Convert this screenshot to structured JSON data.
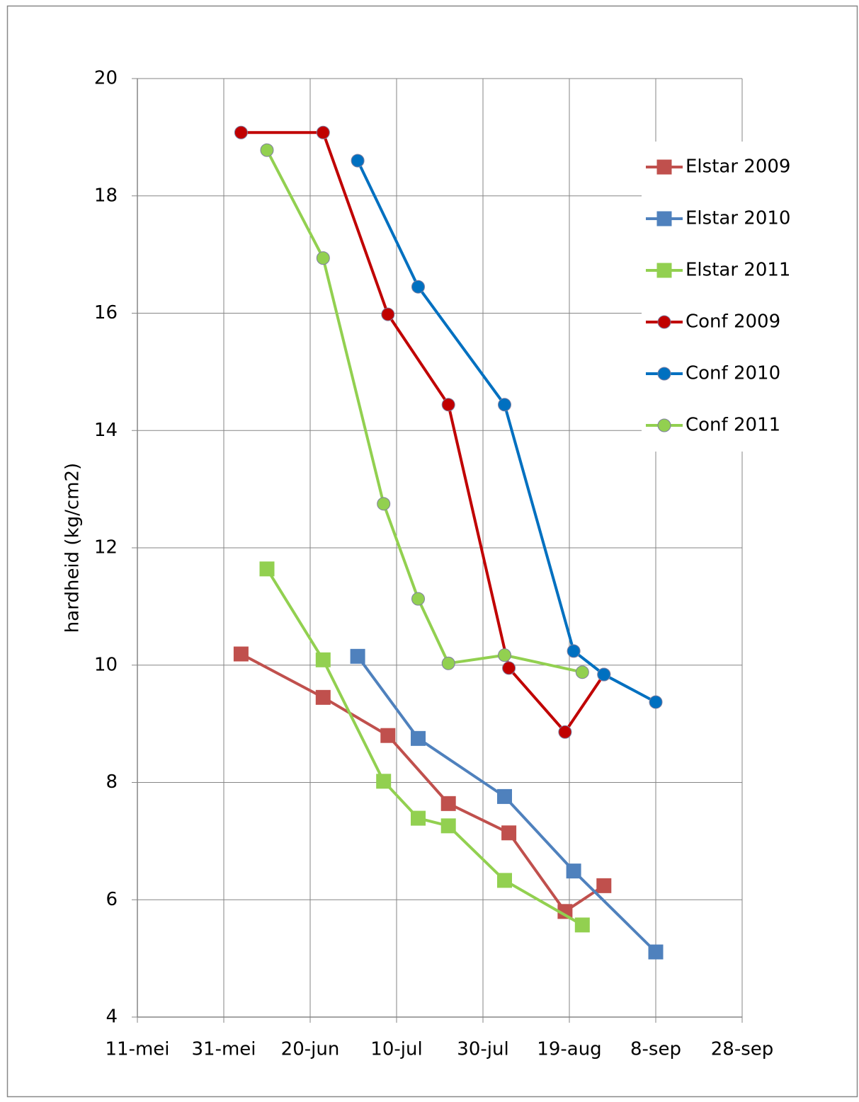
{
  "chart_data": {
    "type": "line",
    "ylabel": "hardheid (kg/cm2)",
    "xlim": [
      131,
      271
    ],
    "xticks": [
      {
        "value": 131,
        "label": "11-mei"
      },
      {
        "value": 151,
        "label": "31-mei"
      },
      {
        "value": 171,
        "label": "20-jun"
      },
      {
        "value": 191,
        "label": "10-jul"
      },
      {
        "value": 211,
        "label": "30-jul"
      },
      {
        "value": 231,
        "label": "19-aug"
      },
      {
        "value": 251,
        "label": "8-sep"
      },
      {
        "value": 271,
        "label": "28-sep"
      }
    ],
    "ylim": [
      4,
      20
    ],
    "yticks": [
      4,
      6,
      8,
      10,
      12,
      14,
      16,
      18,
      20
    ],
    "grid": true,
    "legend": "right",
    "series": [
      {
        "name": "Elstar 2009",
        "color": "#c0504d",
        "marker": "square",
        "x": [
          155,
          174,
          189,
          203,
          217,
          230,
          239
        ],
        "values": [
          10.19,
          9.45,
          8.8,
          7.64,
          7.14,
          5.8,
          6.24
        ]
      },
      {
        "name": "Elstar 2010",
        "color": "#4f81bd",
        "marker": "square",
        "x": [
          182,
          196,
          216,
          232,
          251
        ],
        "values": [
          10.15,
          8.75,
          7.76,
          6.49,
          5.11
        ]
      },
      {
        "name": "Elstar 2011",
        "color": "#92d050",
        "marker": "square",
        "x": [
          161,
          174,
          188,
          196,
          203,
          216,
          234
        ],
        "values": [
          11.64,
          10.09,
          8.02,
          7.39,
          7.26,
          6.33,
          5.57
        ]
      },
      {
        "name": "Conf 2009",
        "color": "#c00000",
        "marker": "circle",
        "x": [
          155,
          174,
          189,
          203,
          217,
          230,
          239
        ],
        "values": [
          19.08,
          19.08,
          15.98,
          14.44,
          9.95,
          8.86,
          9.84
        ]
      },
      {
        "name": "Conf 2010",
        "color": "#0070c0",
        "marker": "circle",
        "x": [
          182,
          196,
          216,
          232,
          239,
          251
        ],
        "values": [
          18.6,
          16.45,
          14.44,
          10.24,
          9.84,
          9.37
        ]
      },
      {
        "name": "Conf 2011",
        "color": "#92d050",
        "marker": "circle",
        "x": [
          161,
          174,
          188,
          196,
          203,
          216,
          234
        ],
        "values": [
          18.78,
          16.94,
          12.75,
          11.13,
          10.03,
          10.17,
          9.88
        ]
      }
    ]
  }
}
